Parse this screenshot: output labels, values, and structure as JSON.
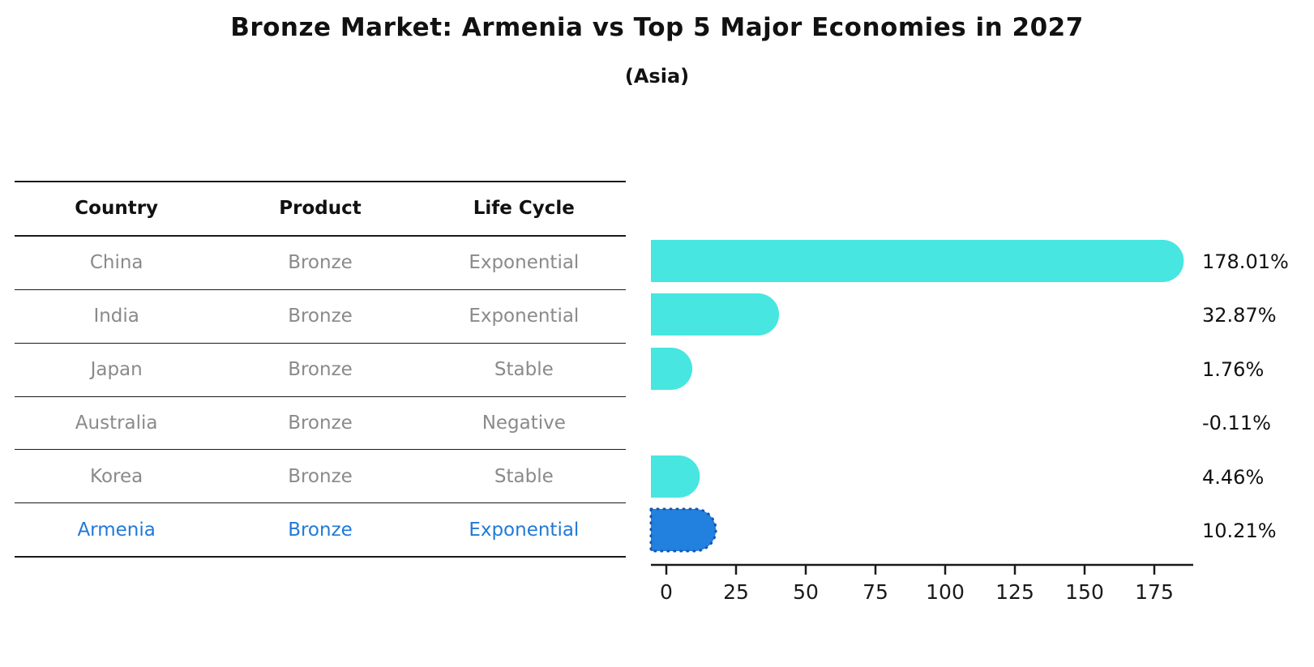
{
  "title": "Bronze Market: Armenia vs Top 5 Major Economies in 2027",
  "subtitle": "(Asia)",
  "table": {
    "headers": [
      "Country",
      "Product",
      "Life Cycle"
    ],
    "rows": [
      {
        "country": "China",
        "product": "Bronze",
        "life_cycle": "Exponential",
        "highlight": false
      },
      {
        "country": "India",
        "product": "Bronze",
        "life_cycle": "Exponential",
        "highlight": false
      },
      {
        "country": "Japan",
        "product": "Bronze",
        "life_cycle": "Stable",
        "highlight": false
      },
      {
        "country": "Australia",
        "product": "Bronze",
        "life_cycle": "Negative",
        "highlight": false
      },
      {
        "country": "Korea",
        "product": "Bronze",
        "life_cycle": "Stable",
        "highlight": false
      },
      {
        "country": "Armenia",
        "product": "Bronze",
        "life_cycle": "Exponential",
        "highlight": true
      }
    ]
  },
  "chart_data": {
    "type": "bar",
    "orientation": "horizontal",
    "title": "Bronze Market: Armenia vs Top 5 Major Economies in 2027",
    "subtitle": "(Asia)",
    "categories": [
      "China",
      "India",
      "Japan",
      "Australia",
      "Korea",
      "Armenia"
    ],
    "values": [
      178.01,
      32.87,
      1.76,
      -0.11,
      4.46,
      10.21
    ],
    "value_labels": [
      "178.01%",
      "32.87%",
      "1.76%",
      "-0.11%",
      "4.46%",
      "10.21%"
    ],
    "xticks": [
      0,
      25,
      50,
      75,
      100,
      125,
      150,
      175
    ],
    "xlim": [
      -5.5,
      189
    ],
    "grid": false,
    "legend": "none",
    "highlight_index": 5
  },
  "colors": {
    "bar": "#47e6e0",
    "highlight_bar": "#2280df",
    "highlight_edge": "#1757b0",
    "highlight_text": "#2079d8",
    "row_text": "#8a8a8a",
    "header_text": "#111111",
    "axis": "#1a1a1a",
    "value_label": "#111111"
  }
}
